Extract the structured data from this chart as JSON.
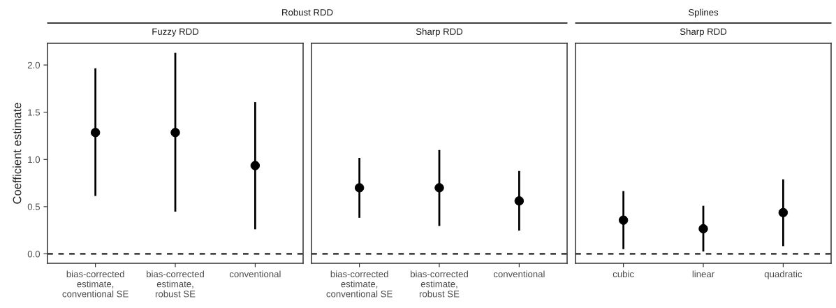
{
  "chart_data": [
    {
      "type": "scatter",
      "title": "Robust RDD",
      "subtitle": "Fuzzy RDD",
      "ylabel": "Coefficient estimate",
      "categories": [
        "bias-corrected\nestimate,\nconventional SE",
        "bias-corrected\nestimate,\nrobust SE",
        "conventional"
      ],
      "values": [
        1.285,
        1.285,
        0.935
      ],
      "errors": [
        [
          0.613,
          1.965
        ],
        [
          0.447,
          2.129
        ],
        [
          0.26,
          1.608
        ]
      ],
      "color": "#000000",
      "marker": "circle",
      "ylim": [
        -0.1,
        2.23
      ],
      "yticks": [
        {
          "value": 0,
          "label": "0.0"
        },
        0.5,
        {
          "value": 1,
          "label": "1.0"
        },
        1.5,
        {
          "value": 2,
          "label": "2.0"
        }
      ],
      "ref_lines": [
        {
          "axis": "y",
          "value": 0,
          "line_style": "dashed",
          "color": "#000000"
        }
      ],
      "grid": false
    },
    {
      "type": "scatter",
      "subtitle": "Sharp RDD",
      "categories": [
        "bias-corrected\nestimate,\nconventional SE",
        "bias-corrected\nestimate,\nrobust SE",
        "conventional"
      ],
      "values": [
        0.7,
        0.7,
        0.561
      ],
      "errors": [
        [
          0.382,
          1.017
        ],
        [
          0.295,
          1.1
        ],
        [
          0.246,
          0.878
        ]
      ],
      "color": "#000000",
      "marker": "circle",
      "ylim": [
        -0.1,
        2.23
      ],
      "tick_labels": "x",
      "ref_lines": [
        {
          "axis": "y",
          "value": 0,
          "line_style": "dashed",
          "color": "#000000"
        }
      ],
      "grid": false
    },
    {
      "type": "scatter",
      "title": "Splines",
      "subtitle": "Sharp RDD",
      "categories": [
        "cubic",
        "linear",
        "quadratic"
      ],
      "values": [
        0.357,
        0.266,
        0.437
      ],
      "errors": [
        [
          0.05,
          0.665
        ],
        [
          0.025,
          0.509
        ],
        [
          0.082,
          0.789
        ]
      ],
      "color": "#000000",
      "marker": "circle",
      "ylim": [
        -0.1,
        2.23
      ],
      "tick_labels": "x",
      "ref_lines": [
        {
          "axis": "y",
          "value": 0,
          "line_style": "dashed",
          "color": "#000000"
        }
      ],
      "grid": false
    }
  ]
}
